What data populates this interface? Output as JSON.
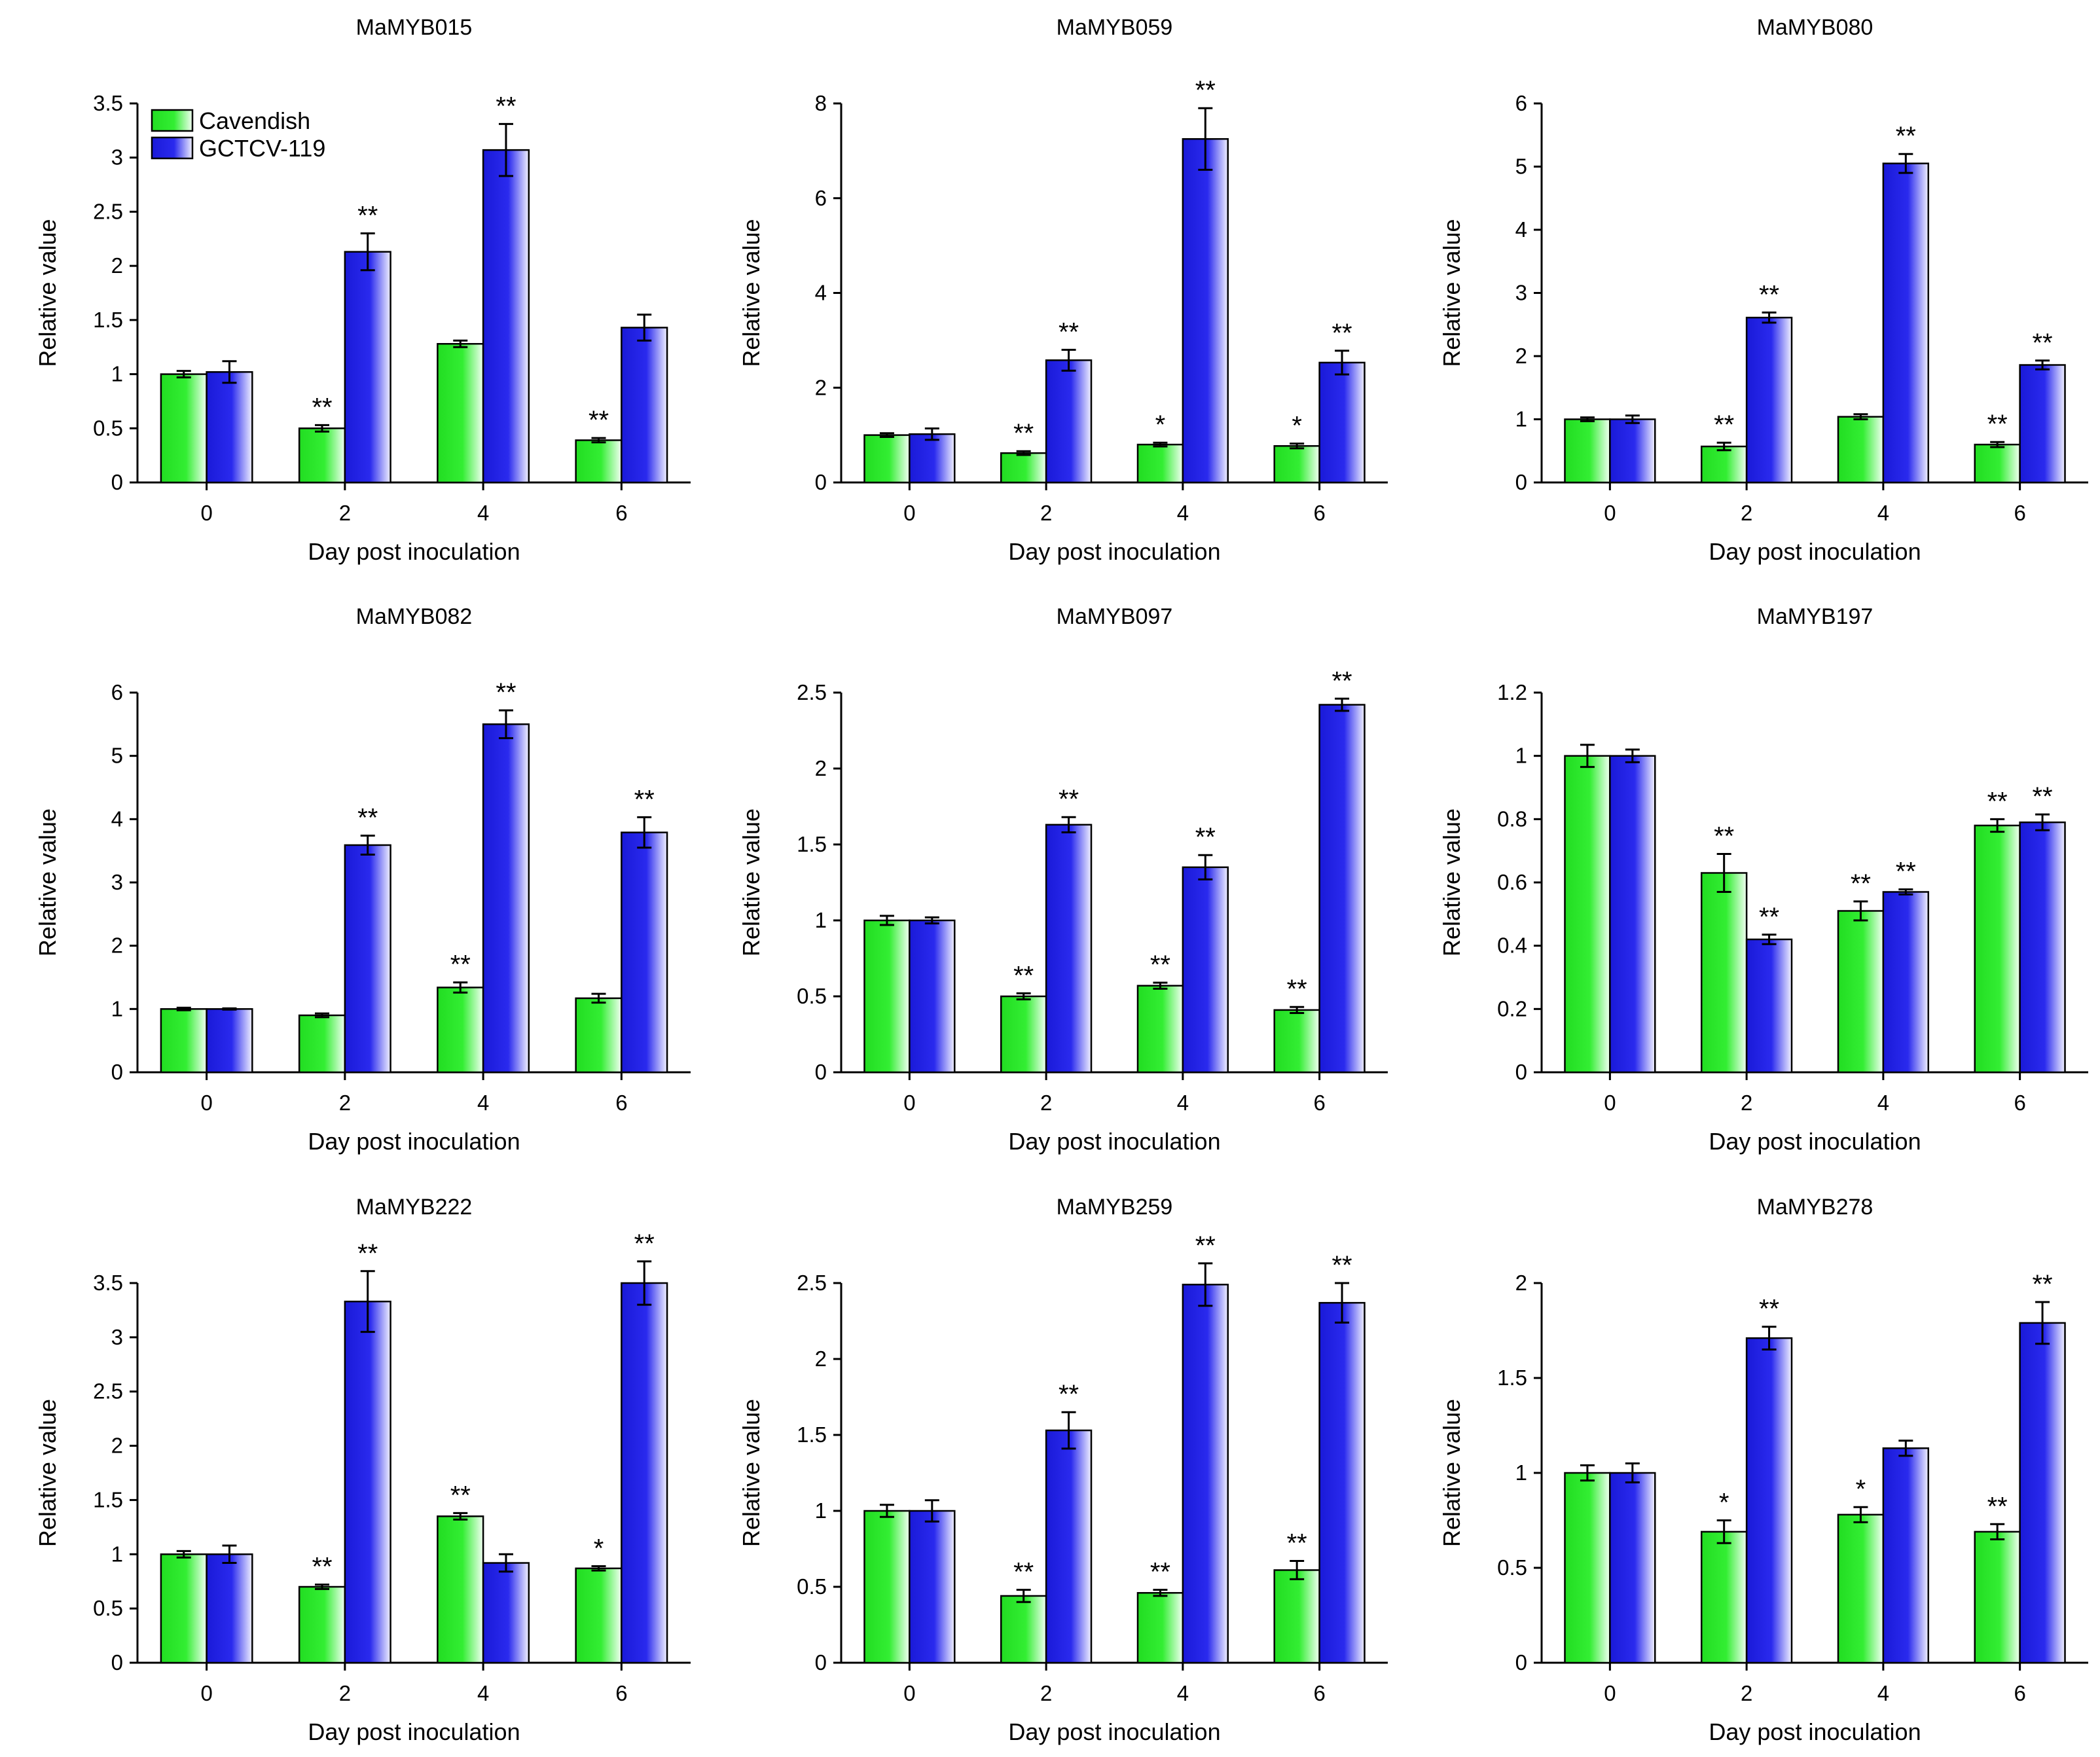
{
  "chart_data": [
    {
      "type": "bar",
      "title": "MaMYB015",
      "xlabel": "Day post inoculation",
      "ylabel": "Relative value",
      "categories": [
        "0",
        "2",
        "4",
        "6"
      ],
      "ylim": [
        0,
        3.5
      ],
      "yticks": [
        "0",
        "0.5",
        "1",
        "1.5",
        "2",
        "2.5",
        "3",
        "3.5"
      ],
      "legend": {
        "position": "top-left",
        "entries": [
          "Cavendish",
          "GCTCV-119"
        ]
      },
      "series": [
        {
          "name": "Cavendish",
          "color": "#22dd22",
          "values": [
            1.0,
            0.5,
            1.28,
            0.39
          ],
          "errors": [
            0.03,
            0.03,
            0.03,
            0.02
          ],
          "sig": [
            "",
            "**",
            "",
            "**"
          ]
        },
        {
          "name": "GCTCV-119",
          "color": "#2222dd",
          "values": [
            1.02,
            2.13,
            3.07,
            1.43
          ],
          "errors": [
            0.1,
            0.17,
            0.24,
            0.12
          ],
          "sig": [
            "",
            "**",
            "**",
            ""
          ]
        }
      ]
    },
    {
      "type": "bar",
      "title": "MaMYB059",
      "xlabel": "Day post inoculation",
      "ylabel": "Relative value",
      "categories": [
        "0",
        "2",
        "4",
        "6"
      ],
      "ylim": [
        0,
        8
      ],
      "yticks": [
        "0",
        "2",
        "4",
        "6",
        "8"
      ],
      "series": [
        {
          "name": "Cavendish",
          "color": "#22dd22",
          "values": [
            1.0,
            0.62,
            0.8,
            0.77
          ],
          "errors": [
            0.04,
            0.04,
            0.04,
            0.05
          ],
          "sig": [
            "",
            "**",
            "*",
            "*"
          ]
        },
        {
          "name": "GCTCV-119",
          "color": "#2222dd",
          "values": [
            1.02,
            2.58,
            7.25,
            2.53
          ],
          "errors": [
            0.12,
            0.22,
            0.65,
            0.25
          ],
          "sig": [
            "",
            "**",
            "**",
            "**"
          ]
        }
      ]
    },
    {
      "type": "bar",
      "title": "MaMYB080",
      "xlabel": "Day post inoculation",
      "ylabel": "Relative value",
      "categories": [
        "0",
        "2",
        "4",
        "6"
      ],
      "ylim": [
        0,
        6
      ],
      "yticks": [
        "0",
        "1",
        "2",
        "3",
        "4",
        "5",
        "6"
      ],
      "series": [
        {
          "name": "Cavendish",
          "color": "#22dd22",
          "values": [
            1.0,
            0.57,
            1.04,
            0.6
          ],
          "errors": [
            0.03,
            0.06,
            0.04,
            0.04
          ],
          "sig": [
            "",
            "**",
            "",
            "**"
          ]
        },
        {
          "name": "GCTCV-119",
          "color": "#2222dd",
          "values": [
            1.0,
            2.61,
            5.05,
            1.86
          ],
          "errors": [
            0.06,
            0.08,
            0.15,
            0.07
          ],
          "sig": [
            "",
            "**",
            "**",
            "**"
          ]
        }
      ]
    },
    {
      "type": "bar",
      "title": "MaMYB082",
      "xlabel": "Day post inoculation",
      "ylabel": "Relative value",
      "categories": [
        "0",
        "2",
        "4",
        "6"
      ],
      "ylim": [
        0,
        6
      ],
      "yticks": [
        "0",
        "1",
        "2",
        "3",
        "4",
        "5",
        "6"
      ],
      "series": [
        {
          "name": "Cavendish",
          "color": "#22dd22",
          "values": [
            1.0,
            0.9,
            1.34,
            1.17
          ],
          "errors": [
            0.02,
            0.03,
            0.08,
            0.07
          ],
          "sig": [
            "",
            "",
            "**",
            ""
          ]
        },
        {
          "name": "GCTCV-119",
          "color": "#2222dd",
          "values": [
            1.0,
            3.59,
            5.5,
            3.79
          ],
          "errors": [
            0.01,
            0.15,
            0.22,
            0.24
          ],
          "sig": [
            "",
            "**",
            "**",
            "**"
          ]
        }
      ]
    },
    {
      "type": "bar",
      "title": "MaMYB097",
      "xlabel": "Day post inoculation",
      "ylabel": "Relative value",
      "categories": [
        "0",
        "2",
        "4",
        "6"
      ],
      "ylim": [
        0,
        2.5
      ],
      "yticks": [
        "0",
        "0.5",
        "1",
        "1.5",
        "2",
        "2.5"
      ],
      "series": [
        {
          "name": "Cavendish",
          "color": "#22dd22",
          "values": [
            1.0,
            0.5,
            0.57,
            0.41
          ],
          "errors": [
            0.03,
            0.02,
            0.02,
            0.02
          ],
          "sig": [
            "",
            "**",
            "**",
            "**"
          ]
        },
        {
          "name": "GCTCV-119",
          "color": "#2222dd",
          "values": [
            1.0,
            1.63,
            1.35,
            2.42
          ],
          "errors": [
            0.02,
            0.05,
            0.08,
            0.04
          ],
          "sig": [
            "",
            "**",
            "**",
            "**"
          ]
        }
      ]
    },
    {
      "type": "bar",
      "title": "MaMYB197",
      "xlabel": "Day post inoculation",
      "ylabel": "Relative value",
      "categories": [
        "0",
        "2",
        "4",
        "6"
      ],
      "ylim": [
        0,
        1.2
      ],
      "yticks": [
        "0",
        "0.2",
        "0.4",
        "0.6",
        "0.8",
        "1",
        "1.2"
      ],
      "series": [
        {
          "name": "Cavendish",
          "color": "#22dd22",
          "values": [
            1.0,
            0.63,
            0.51,
            0.78
          ],
          "errors": [
            0.035,
            0.06,
            0.03,
            0.02
          ],
          "sig": [
            "",
            "**",
            "**",
            "**"
          ]
        },
        {
          "name": "GCTCV-119",
          "color": "#2222dd",
          "values": [
            1.0,
            0.42,
            0.57,
            0.79
          ],
          "errors": [
            0.02,
            0.015,
            0.008,
            0.025
          ],
          "sig": [
            "",
            "**",
            "**",
            "**"
          ]
        }
      ]
    },
    {
      "type": "bar",
      "title": "MaMYB222",
      "xlabel": "Day post inoculation",
      "ylabel": "Relative value",
      "categories": [
        "0",
        "2",
        "4",
        "6"
      ],
      "ylim": [
        0,
        3.5
      ],
      "yticks": [
        "0",
        "0.5",
        "1",
        "1.5",
        "2",
        "2.5",
        "3",
        "3.5"
      ],
      "series": [
        {
          "name": "Cavendish",
          "color": "#22dd22",
          "values": [
            1.0,
            0.7,
            1.35,
            0.87
          ],
          "errors": [
            0.03,
            0.02,
            0.03,
            0.02
          ],
          "sig": [
            "",
            "**",
            "**",
            "*"
          ]
        },
        {
          "name": "GCTCV-119",
          "color": "#2222dd",
          "values": [
            1.0,
            3.33,
            0.92,
            3.5
          ],
          "errors": [
            0.08,
            0.28,
            0.08,
            0.2
          ],
          "sig": [
            "",
            "**",
            "",
            "**"
          ]
        }
      ]
    },
    {
      "type": "bar",
      "title": "MaMYB259",
      "xlabel": "Day post inoculation",
      "ylabel": "Relative value",
      "categories": [
        "0",
        "2",
        "4",
        "6"
      ],
      "ylim": [
        0,
        2.5
      ],
      "yticks": [
        "0",
        "0.5",
        "1",
        "1.5",
        "2",
        "2.5"
      ],
      "series": [
        {
          "name": "Cavendish",
          "color": "#22dd22",
          "values": [
            1.0,
            0.44,
            0.46,
            0.61
          ],
          "errors": [
            0.04,
            0.04,
            0.02,
            0.06
          ],
          "sig": [
            "",
            "**",
            "**",
            "**"
          ]
        },
        {
          "name": "GCTCV-119",
          "color": "#2222dd",
          "values": [
            1.0,
            1.53,
            2.49,
            2.37
          ],
          "errors": [
            0.07,
            0.12,
            0.14,
            0.13
          ],
          "sig": [
            "",
            "**",
            "**",
            "**"
          ]
        }
      ]
    },
    {
      "type": "bar",
      "title": "MaMYB278",
      "xlabel": "Day post inoculation",
      "ylabel": "Relative value",
      "categories": [
        "0",
        "2",
        "4",
        "6"
      ],
      "ylim": [
        0,
        2
      ],
      "yticks": [
        "0",
        "0.5",
        "1",
        "1.5",
        "2"
      ],
      "series": [
        {
          "name": "Cavendish",
          "color": "#22dd22",
          "values": [
            1.0,
            0.69,
            0.78,
            0.69
          ],
          "errors": [
            0.04,
            0.06,
            0.04,
            0.04
          ],
          "sig": [
            "",
            "*",
            "*",
            "**"
          ]
        },
        {
          "name": "GCTCV-119",
          "color": "#2222dd",
          "values": [
            1.0,
            1.71,
            1.13,
            1.79
          ],
          "errors": [
            0.05,
            0.06,
            0.04,
            0.11
          ],
          "sig": [
            "",
            "**",
            "",
            "**"
          ]
        }
      ]
    }
  ]
}
